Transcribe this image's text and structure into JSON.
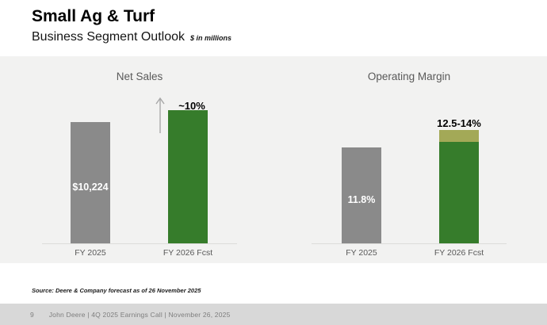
{
  "header": {
    "title": "Small Ag & Turf",
    "subtitle": "Business Segment Outlook",
    "subtitle_note": "$ in millions"
  },
  "charts": {
    "net_sales": {
      "title": "Net Sales",
      "bar_label_fy2025": "$10,224",
      "growth_label": "~10%",
      "x_labels": [
        "FY 2025",
        "FY 2026 Fcst"
      ]
    },
    "operating_margin": {
      "title": "Operating Margin",
      "bar_label_fy2025": "11.8%",
      "range_label": "12.5-14%",
      "x_labels": [
        "FY 2025",
        "FY 2026 Fcst"
      ]
    }
  },
  "chart_data": [
    {
      "type": "bar",
      "title": "Net Sales",
      "unit": "$ in millions",
      "categories": [
        "FY 2025",
        "FY 2026 Fcst"
      ],
      "values": [
        10224,
        null
      ],
      "approx_growth_pct_fy2026": 10,
      "data_labels": [
        "$10,224",
        "~10%"
      ],
      "annotations": [
        "up arrow with ~10% above FY 2026 Fcst bar"
      ],
      "bar_colors": [
        "#8A8A8A",
        "#367C2B"
      ],
      "grid": false,
      "legend": false
    },
    {
      "type": "bar",
      "title": "Operating Margin",
      "unit": "%",
      "categories": [
        "FY 2025",
        "FY 2026 Fcst"
      ],
      "values": [
        11.8,
        null
      ],
      "range_fy2026": [
        12.5,
        14
      ],
      "data_labels": [
        "11.8%",
        "12.5-14%"
      ],
      "annotations": [
        "FY 2026 Fcst shown as green bar to 12.5% with olive segment up to 14%"
      ],
      "bar_colors": [
        "#8A8A8A",
        "#367C2B",
        "#A3A957"
      ],
      "grid": false,
      "legend": false
    }
  ],
  "footer": {
    "source": "Source: Deere & Company forecast as of 26 November 2025",
    "page_number": "9",
    "text": "John Deere | 4Q 2025 Earnings Call | November 26, 2025"
  },
  "colors": {
    "deere_green": "#367C2B",
    "olive_range": "#A3A957",
    "bar_gray": "#8A8A8A",
    "band_background": "#F2F2F1",
    "footer_bar": "#D8D8D8",
    "muted_text": "#595959"
  }
}
